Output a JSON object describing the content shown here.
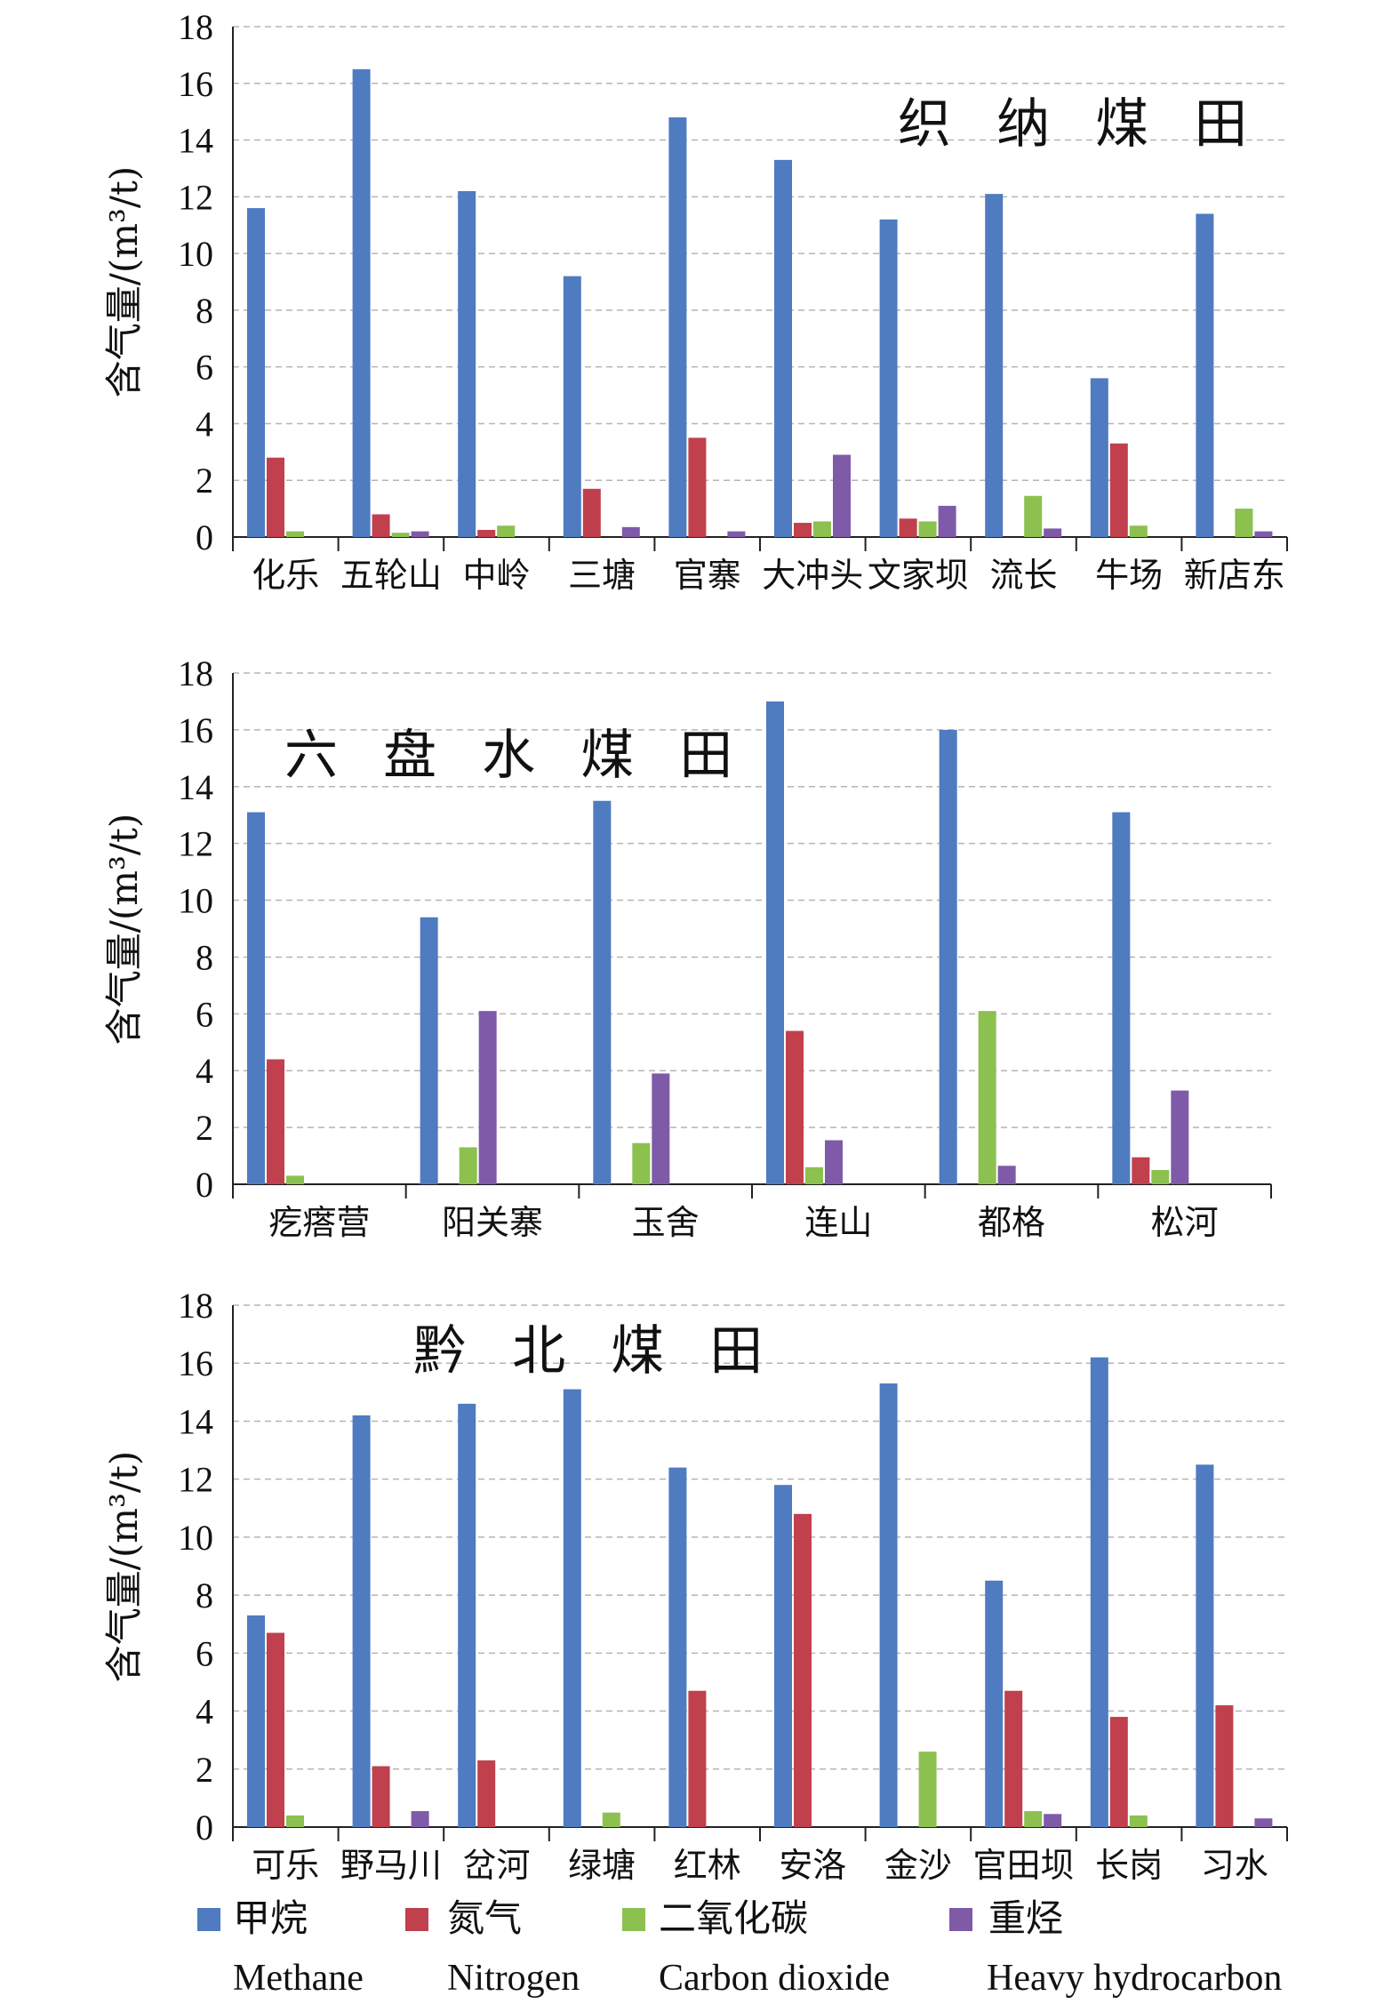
{
  "chart_data": [
    {
      "type": "bar",
      "title": "织 纳 煤 田",
      "ylabel": "含气量/(m³/t)",
      "ylim": [
        0,
        18
      ],
      "yticks": [
        0,
        2,
        4,
        6,
        8,
        10,
        12,
        14,
        16,
        18
      ],
      "grid": true,
      "categories": [
        "化乐",
        "五轮山",
        "中岭",
        "三塘",
        "官寨",
        "大冲头",
        "文家坝",
        "流长",
        "牛场",
        "新店东"
      ],
      "series": [
        {
          "name": "甲烷",
          "color": "#4f7bc0",
          "values": [
            11.6,
            16.5,
            12.2,
            9.2,
            14.8,
            13.3,
            11.2,
            12.1,
            5.6,
            11.4
          ]
        },
        {
          "name": "氮气",
          "color": "#c0404d",
          "values": [
            2.8,
            0.8,
            0.25,
            1.7,
            3.5,
            0.5,
            0.65,
            0,
            3.3,
            0
          ]
        },
        {
          "name": "二氧化碳",
          "color": "#8cc04f",
          "values": [
            0.2,
            0.15,
            0.4,
            0,
            0,
            0.55,
            0.55,
            1.45,
            0.4,
            1.0
          ]
        },
        {
          "name": "重烃",
          "color": "#7f5aa8",
          "values": [
            0,
            0.2,
            0,
            0.35,
            0.2,
            2.9,
            1.1,
            0.3,
            0,
            0.2
          ]
        }
      ]
    },
    {
      "type": "bar",
      "title": "六 盘 水 煤 田",
      "ylabel": "含气量/(m³/t)",
      "ylim": [
        0,
        18
      ],
      "yticks": [
        0,
        2,
        4,
        6,
        8,
        10,
        12,
        14,
        16,
        18
      ],
      "grid": true,
      "categories": [
        "疙瘩营",
        "阳关寨",
        "玉舍",
        "连山",
        "都格",
        "松河"
      ],
      "series": [
        {
          "name": "甲烷",
          "color": "#4f7bc0",
          "values": [
            13.1,
            9.4,
            13.5,
            17.0,
            16.0,
            13.1
          ]
        },
        {
          "name": "氮气",
          "color": "#c0404d",
          "values": [
            4.4,
            0,
            0,
            5.4,
            0,
            0.95
          ]
        },
        {
          "name": "二氧化碳",
          "color": "#8cc04f",
          "values": [
            0.3,
            1.3,
            1.45,
            0.6,
            6.1,
            0.5
          ]
        },
        {
          "name": "重烃",
          "color": "#7f5aa8",
          "values": [
            0,
            6.1,
            3.9,
            1.55,
            0.65,
            3.3
          ]
        }
      ]
    },
    {
      "type": "bar",
      "title": "黔 北 煤 田",
      "ylabel": "含气量/(m³/t)",
      "ylim": [
        0,
        18
      ],
      "yticks": [
        0,
        2,
        4,
        6,
        8,
        10,
        12,
        14,
        16,
        18
      ],
      "grid": true,
      "categories": [
        "可乐",
        "野马川",
        "岔河",
        "绿塘",
        "红林",
        "安洛",
        "金沙",
        "官田坝",
        "长岗",
        "习水"
      ],
      "series": [
        {
          "name": "甲烷",
          "color": "#4f7bc0",
          "values": [
            7.3,
            14.2,
            14.6,
            15.1,
            12.4,
            11.8,
            15.3,
            8.5,
            16.2,
            12.5
          ]
        },
        {
          "name": "氮气",
          "color": "#c0404d",
          "values": [
            6.7,
            2.1,
            2.3,
            0,
            4.7,
            10.8,
            0,
            4.7,
            3.8,
            4.2
          ]
        },
        {
          "name": "二氧化碳",
          "color": "#8cc04f",
          "values": [
            0.4,
            0,
            0,
            0.5,
            0,
            0,
            2.6,
            0.55,
            0.4,
            0
          ]
        },
        {
          "name": "重烃",
          "color": "#7f5aa8",
          "values": [
            0,
            0.55,
            0,
            0,
            0,
            0,
            0,
            0.45,
            0,
            0.3
          ]
        }
      ]
    }
  ],
  "legend": {
    "position": "bottom",
    "items": [
      {
        "cn": "甲烷",
        "en": "Methane",
        "color": "#4f7bc0"
      },
      {
        "cn": "氮气",
        "en": "Nitrogen",
        "color": "#c0404d"
      },
      {
        "cn": "二氧化碳",
        "en": "Carbon dioxide",
        "color": "#8cc04f"
      },
      {
        "cn": "重烃",
        "en": "Heavy hydrocarbon",
        "color": "#7f5aa8"
      }
    ]
  }
}
